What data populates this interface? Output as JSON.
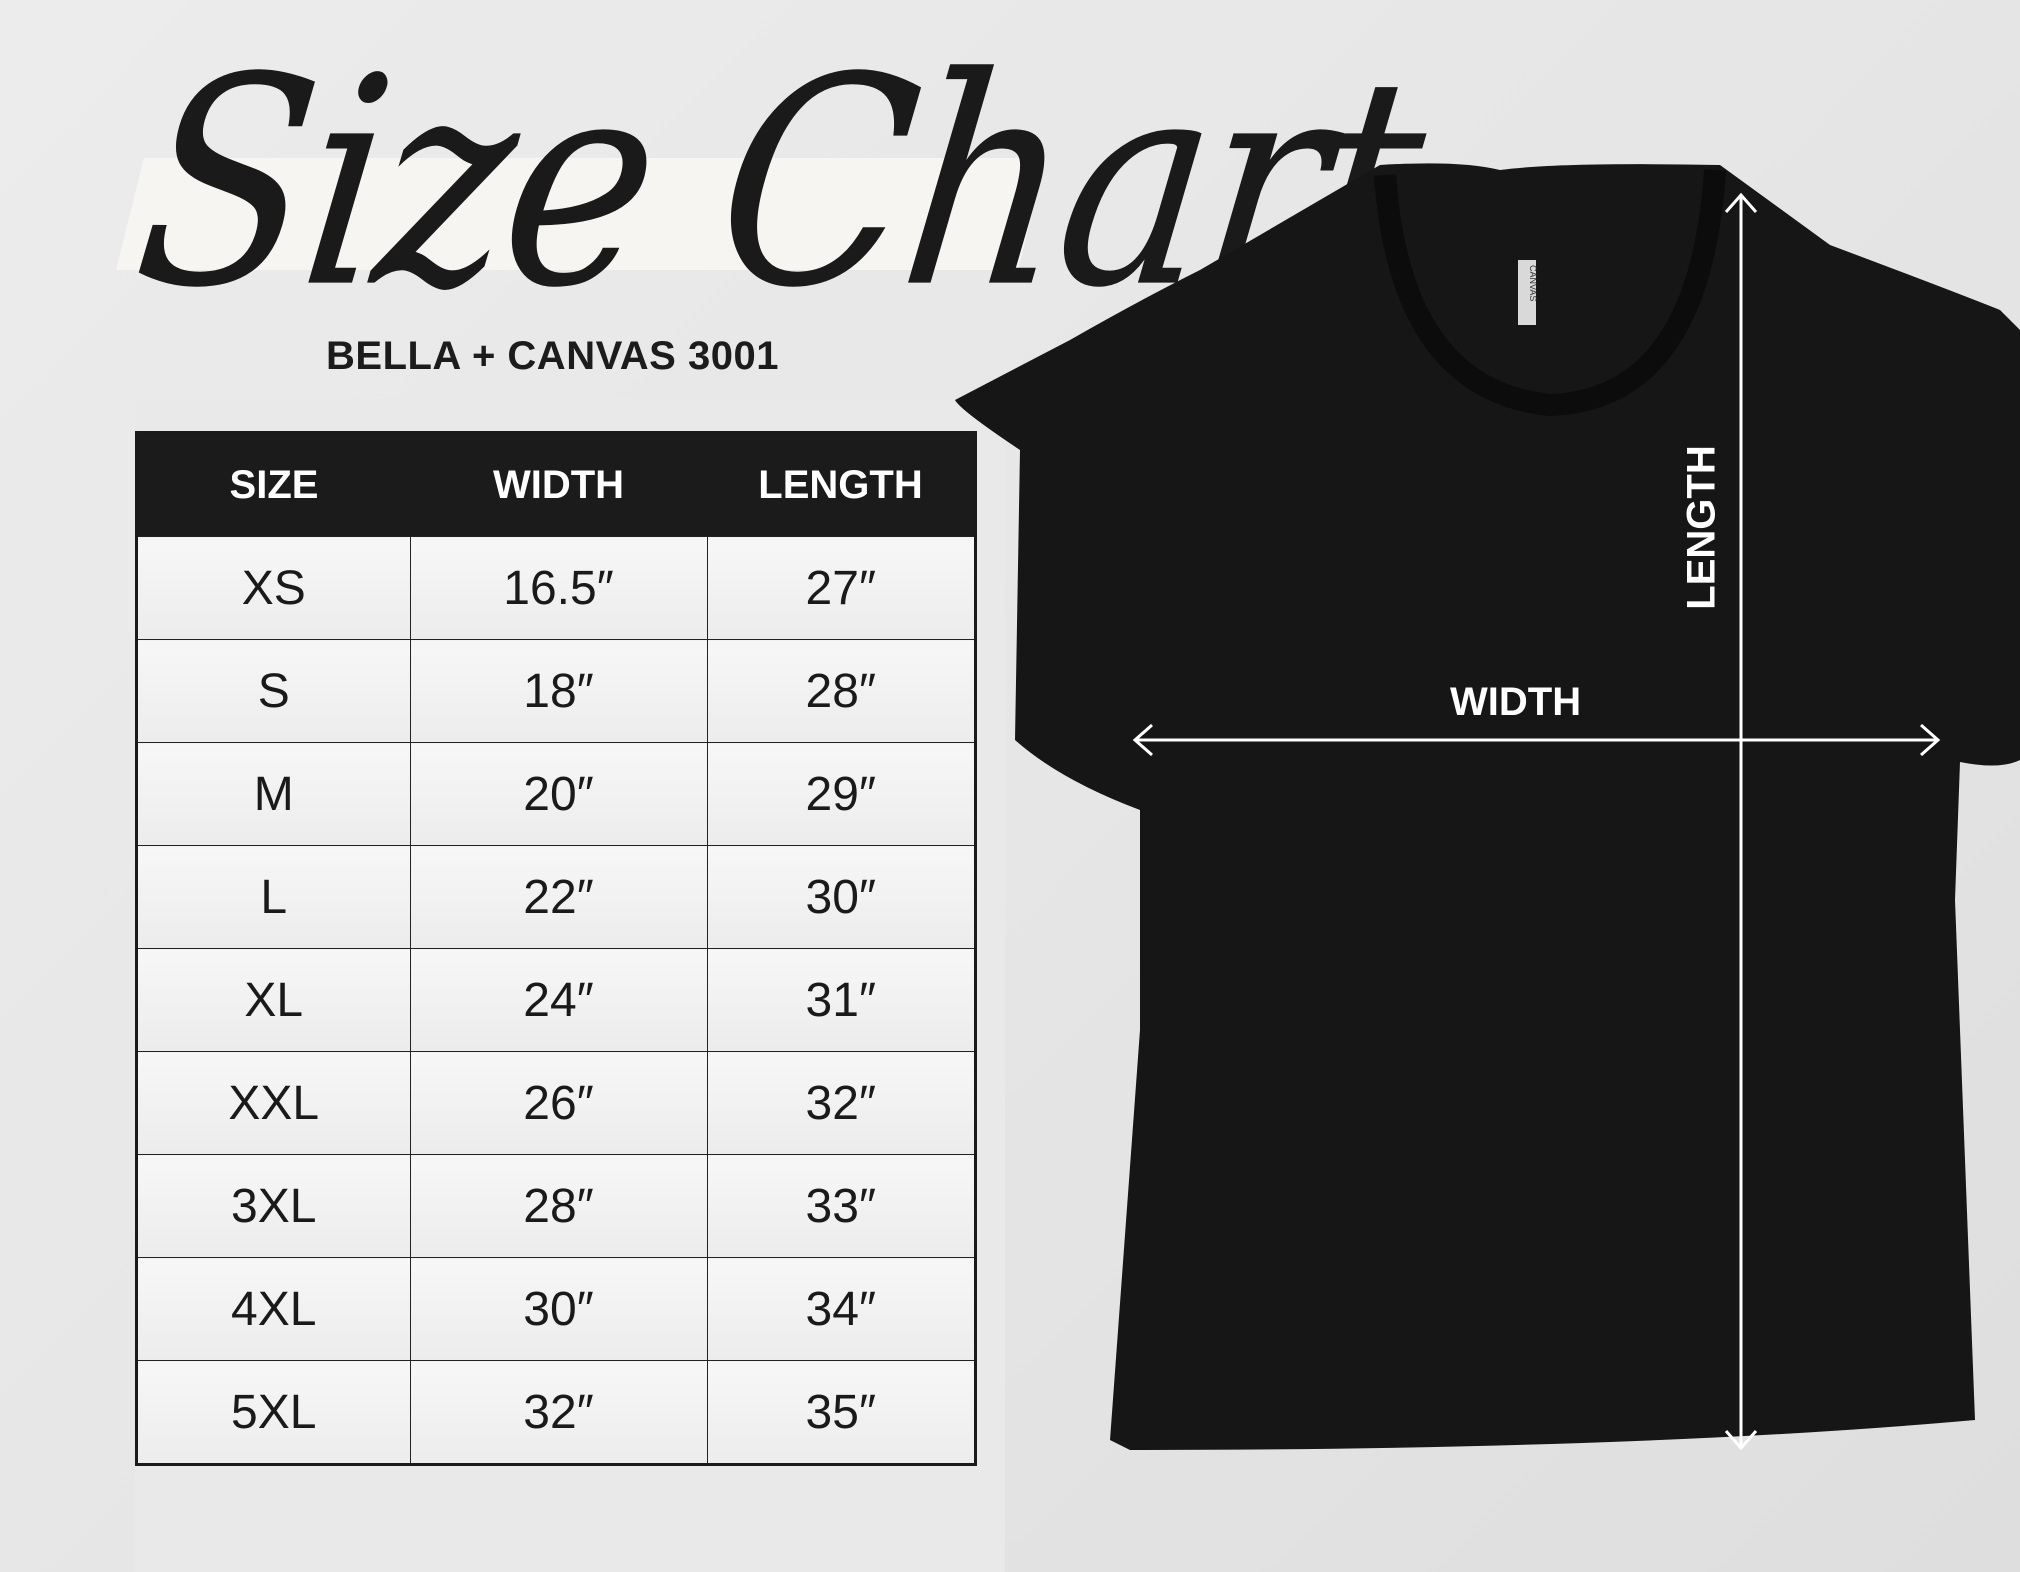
{
  "title": "Size Chart",
  "subtitle": "BELLA + CANVAS 3001",
  "table": {
    "headers": [
      "SIZE",
      "WIDTH",
      "LENGTH"
    ],
    "rows": [
      [
        "XS",
        "16.5″",
        "27″"
      ],
      [
        "S",
        "18″",
        "28″"
      ],
      [
        "M",
        "20″",
        "29″"
      ],
      [
        "L",
        "22″",
        "30″"
      ],
      [
        "XL",
        "24″",
        "31″"
      ],
      [
        "XXL",
        "26″",
        "32″"
      ],
      [
        "3XL",
        "28″",
        "33″"
      ],
      [
        "4XL",
        "30″",
        "34″"
      ],
      [
        "5XL",
        "32″",
        "35″"
      ]
    ]
  },
  "diagram": {
    "width_label": "WIDTH",
    "length_label": "LENGTH",
    "tag_text": "CANVAS",
    "shirt_color": "#161616"
  }
}
